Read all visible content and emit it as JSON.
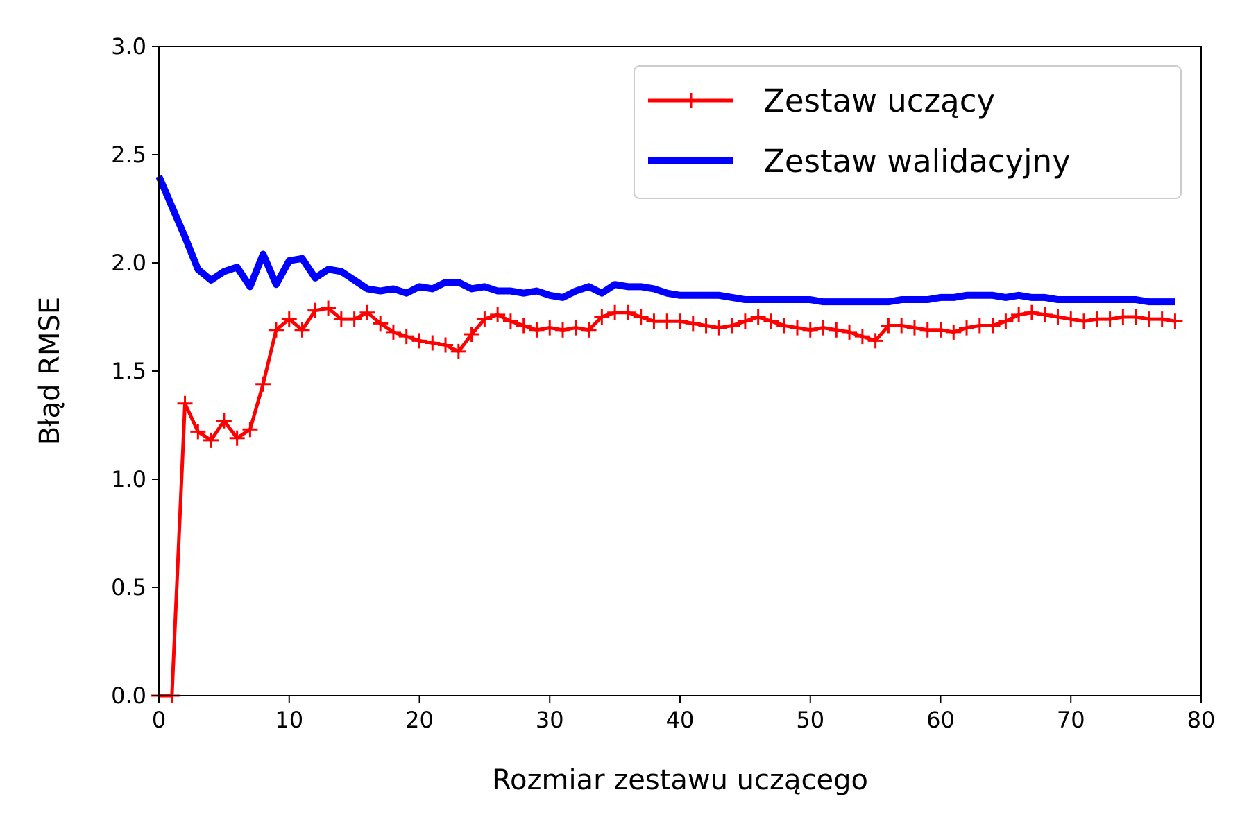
{
  "chart_data": {
    "type": "line",
    "title": "",
    "xlabel": "Rozmiar zestawu uczącego",
    "ylabel": "Błąd RMSE",
    "xlim": [
      0,
      80
    ],
    "ylim": [
      0.0,
      3.0
    ],
    "xticks": [
      0,
      10,
      20,
      30,
      40,
      50,
      60,
      70,
      80
    ],
    "xtick_labels": [
      "0",
      "10",
      "20",
      "30",
      "40",
      "50",
      "60",
      "70",
      "80"
    ],
    "yticks": [
      0.0,
      0.5,
      1.0,
      1.5,
      2.0,
      2.5,
      3.0
    ],
    "ytick_labels": [
      "0.0",
      "0.5",
      "1.0",
      "1.5",
      "2.0",
      "2.5",
      "3.0"
    ],
    "grid": false,
    "legend_position": "top-right",
    "x": [
      0,
      1,
      2,
      3,
      4,
      5,
      6,
      7,
      8,
      9,
      10,
      11,
      12,
      13,
      14,
      15,
      16,
      17,
      18,
      19,
      20,
      21,
      22,
      23,
      24,
      25,
      26,
      27,
      28,
      29,
      30,
      31,
      32,
      33,
      34,
      35,
      36,
      37,
      38,
      39,
      40,
      41,
      42,
      43,
      44,
      45,
      46,
      47,
      48,
      49,
      50,
      51,
      52,
      53,
      54,
      55,
      56,
      57,
      58,
      59,
      60,
      61,
      62,
      63,
      64,
      65,
      66,
      67,
      68,
      69,
      70,
      71,
      72,
      73,
      74,
      75,
      76,
      77,
      78
    ],
    "series": [
      {
        "name": "Zestaw uczący",
        "color": "#ff0000",
        "marker": "+",
        "values": [
          0.0,
          0.0,
          1.35,
          1.22,
          1.18,
          1.27,
          1.19,
          1.23,
          1.44,
          1.69,
          1.74,
          1.69,
          1.78,
          1.79,
          1.74,
          1.74,
          1.77,
          1.72,
          1.68,
          1.66,
          1.64,
          1.63,
          1.62,
          1.59,
          1.67,
          1.74,
          1.76,
          1.73,
          1.71,
          1.69,
          1.7,
          1.69,
          1.7,
          1.69,
          1.75,
          1.77,
          1.77,
          1.75,
          1.73,
          1.73,
          1.73,
          1.72,
          1.71,
          1.7,
          1.71,
          1.73,
          1.75,
          1.73,
          1.71,
          1.7,
          1.69,
          1.7,
          1.69,
          1.68,
          1.66,
          1.64,
          1.71,
          1.71,
          1.7,
          1.69,
          1.69,
          1.68,
          1.7,
          1.71,
          1.71,
          1.73,
          1.76,
          1.77,
          1.76,
          1.75,
          1.74,
          1.73,
          1.74,
          1.74,
          1.75,
          1.75,
          1.74,
          1.74,
          1.73
        ]
      },
      {
        "name": "Zestaw walidacyjny",
        "color": "#0000ff",
        "marker": "",
        "values": [
          2.4,
          2.26,
          2.12,
          1.97,
          1.92,
          1.96,
          1.98,
          1.89,
          2.04,
          1.9,
          2.01,
          2.02,
          1.93,
          1.97,
          1.96,
          1.92,
          1.88,
          1.87,
          1.88,
          1.86,
          1.89,
          1.88,
          1.91,
          1.91,
          1.88,
          1.89,
          1.87,
          1.87,
          1.86,
          1.87,
          1.85,
          1.84,
          1.87,
          1.89,
          1.86,
          1.9,
          1.89,
          1.89,
          1.88,
          1.86,
          1.85,
          1.85,
          1.85,
          1.85,
          1.84,
          1.83,
          1.83,
          1.83,
          1.83,
          1.83,
          1.83,
          1.82,
          1.82,
          1.82,
          1.82,
          1.82,
          1.82,
          1.83,
          1.83,
          1.83,
          1.84,
          1.84,
          1.85,
          1.85,
          1.85,
          1.84,
          1.85,
          1.84,
          1.84,
          1.83,
          1.83,
          1.83,
          1.83,
          1.83,
          1.83,
          1.83,
          1.82,
          1.82,
          1.82
        ]
      }
    ]
  }
}
